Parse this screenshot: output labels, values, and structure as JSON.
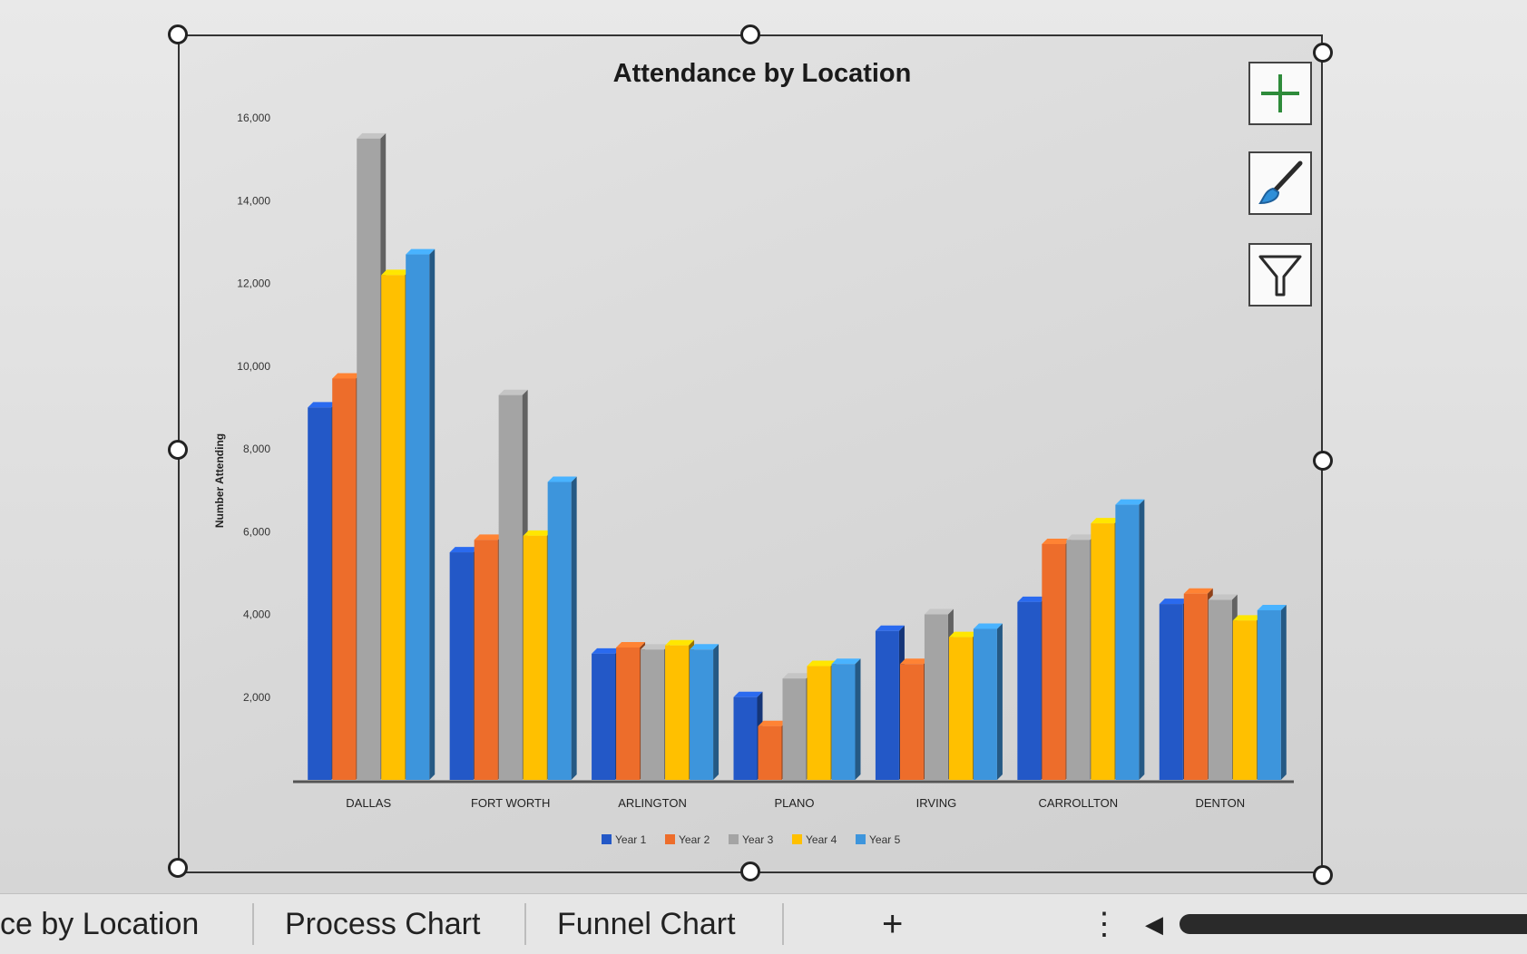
{
  "chart_data": {
    "type": "bar",
    "title": "Attendance by Location",
    "ylabel": "Number Attending",
    "xlabel": "",
    "ylim": [
      0,
      16000
    ],
    "yticks": [
      "2,000",
      "4,000",
      "6,000",
      "8,000",
      "10,000",
      "12,000",
      "14,000",
      "16,000"
    ],
    "categories": [
      "DALLAS",
      "FORT WORTH",
      "ARLINGTON",
      "PLANO",
      "IRVING",
      "CARROLLTON",
      "DENTON"
    ],
    "series": [
      {
        "name": "Year 1",
        "color": "#2358c7",
        "values": [
          9000,
          5500,
          3050,
          2000,
          3600,
          4300,
          4250
        ]
      },
      {
        "name": "Year 2",
        "color": "#ed6d2b",
        "values": [
          9700,
          5800,
          3200,
          1300,
          2800,
          5700,
          4500
        ]
      },
      {
        "name": "Year 3",
        "color": "#a4a4a4",
        "values": [
          15500,
          9300,
          3150,
          2450,
          4000,
          5800,
          4350
        ]
      },
      {
        "name": "Year 4",
        "color": "#ffc000",
        "values": [
          12200,
          5900,
          3250,
          2750,
          3450,
          6200,
          3850
        ]
      },
      {
        "name": "Year 5",
        "color": "#3d95dc",
        "values": [
          12700,
          7200,
          3150,
          2800,
          3650,
          6650,
          4100
        ]
      }
    ],
    "legend": "bottom",
    "grid": false
  },
  "chart_buttons": {
    "add_icon": "plus-icon",
    "style_icon": "paintbrush-icon",
    "filter_icon": "funnel-icon"
  },
  "tabs": [
    {
      "label": "ce by Location"
    },
    {
      "label": "Process Chart"
    },
    {
      "label": "Funnel Chart"
    }
  ],
  "tab_bar": {
    "add_sheet": "+",
    "more_menu": "⋮",
    "scroll_left": "◀"
  }
}
